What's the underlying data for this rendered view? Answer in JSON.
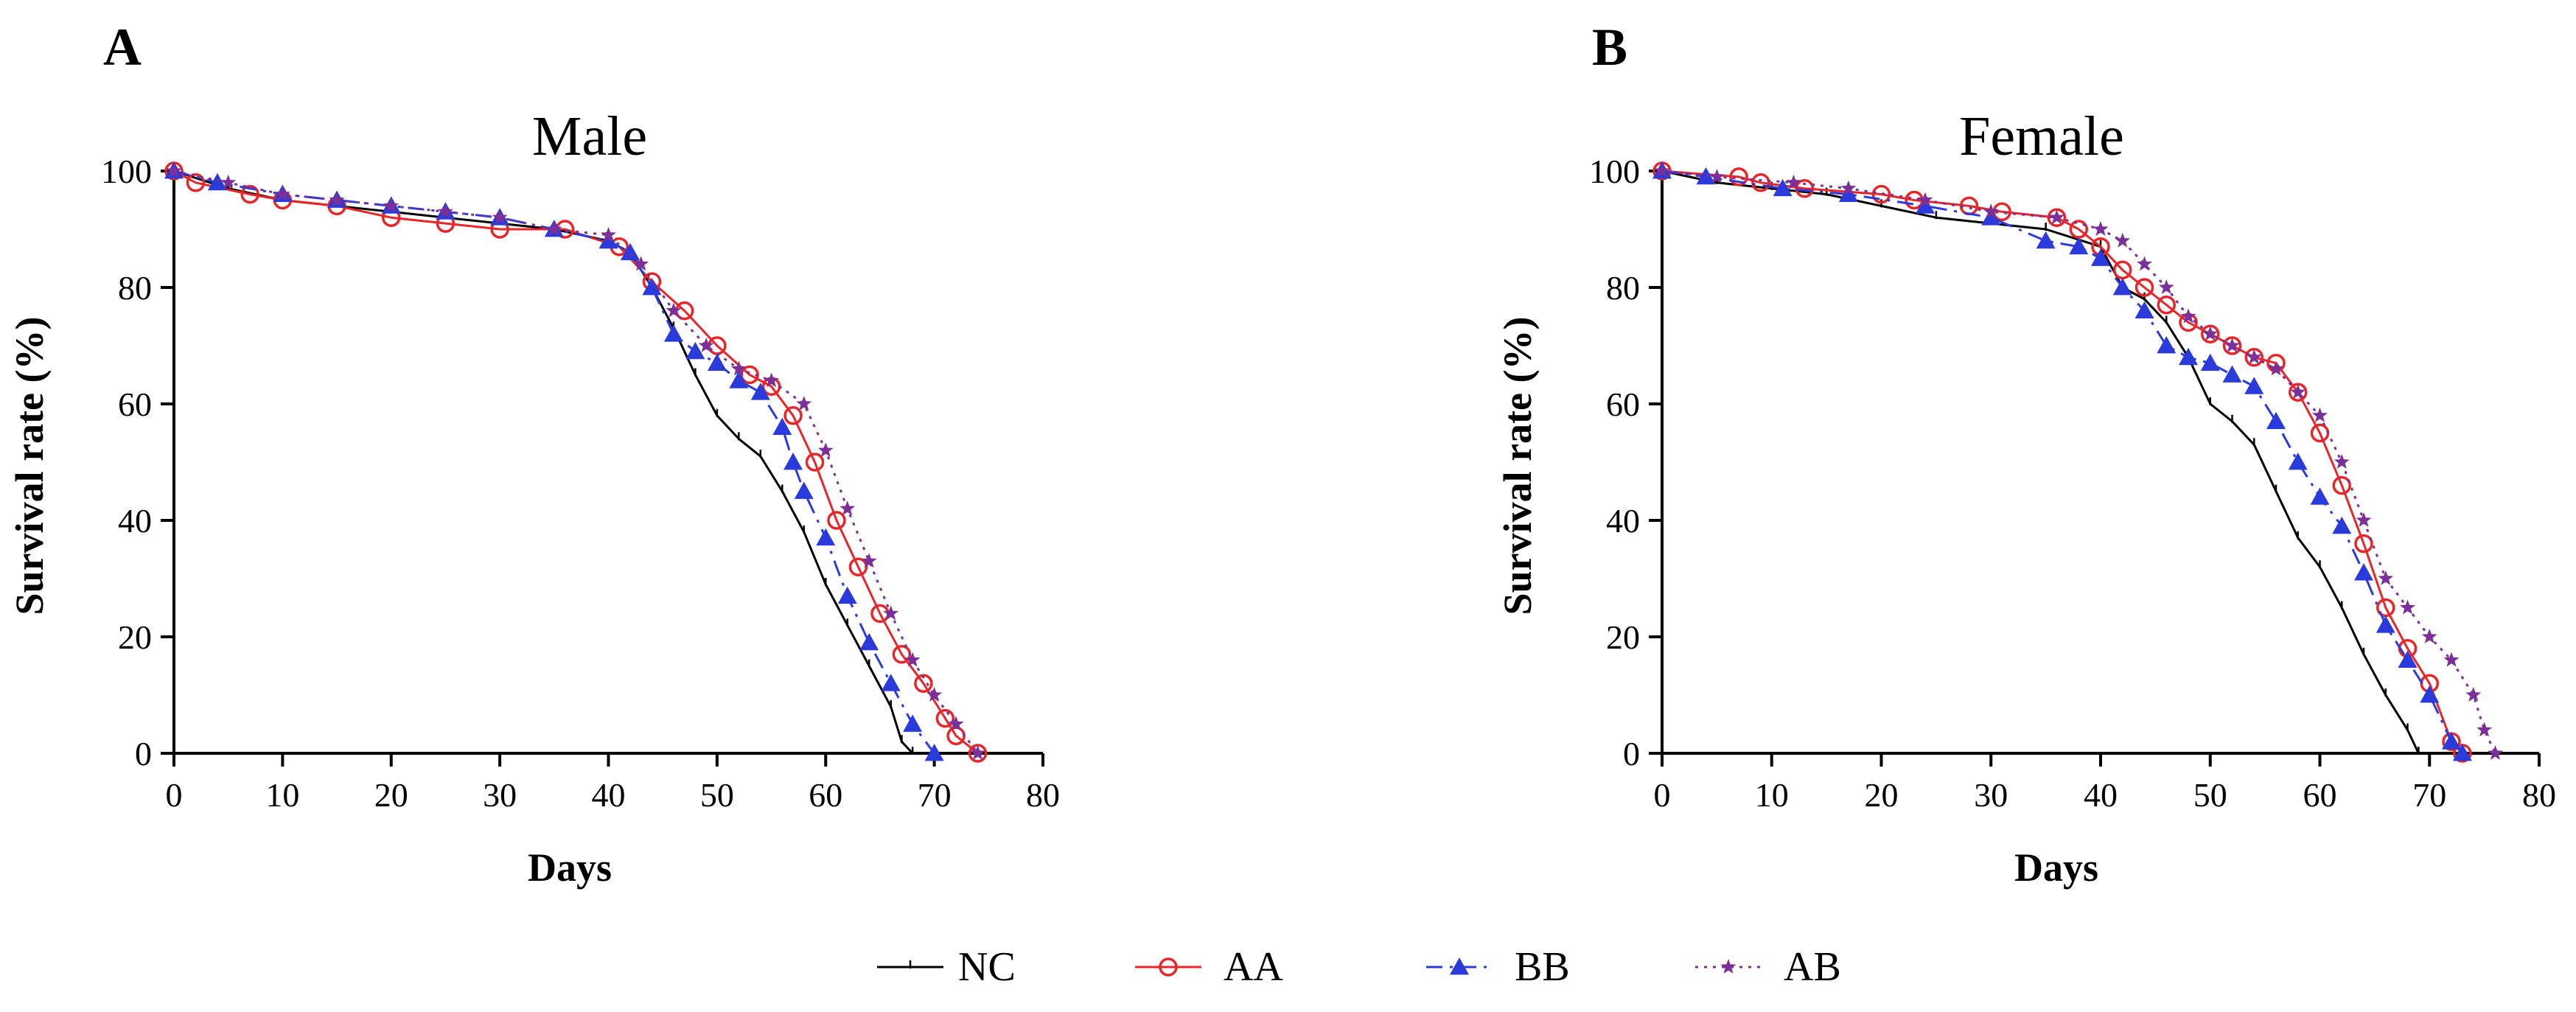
{
  "chart_data": [
    {
      "panel": "A",
      "type": "line",
      "title": "Male",
      "xlabel": "Days",
      "ylabel": "Survival rate (%)",
      "xlim": [
        0,
        80
      ],
      "ylim": [
        0,
        100
      ],
      "xticks": [
        0,
        10,
        20,
        30,
        40,
        50,
        60,
        70,
        80
      ],
      "yticks": [
        0,
        20,
        40,
        60,
        80,
        100
      ],
      "grid": false,
      "series": [
        {
          "name": "NC",
          "x": [
            0,
            5,
            10,
            15,
            20,
            25,
            30,
            35,
            40,
            42,
            44,
            46,
            48,
            50,
            52,
            54,
            56,
            58,
            60,
            62,
            64,
            66,
            67,
            68
          ],
          "y": [
            100,
            97,
            95,
            94,
            93,
            92,
            91,
            90,
            88,
            86,
            80,
            73,
            65,
            58,
            54,
            51,
            45,
            38,
            29,
            22,
            15,
            8,
            2,
            0
          ]
        },
        {
          "name": "AA",
          "x": [
            0,
            2,
            7,
            10,
            15,
            20,
            25,
            30,
            36,
            41,
            44,
            47,
            50,
            53,
            55,
            57,
            59,
            61,
            63,
            65,
            67,
            69,
            71,
            72,
            74
          ],
          "y": [
            100,
            98,
            96,
            95,
            94,
            92,
            91,
            90,
            90,
            87,
            81,
            76,
            70,
            65,
            63,
            58,
            50,
            40,
            32,
            24,
            17,
            12,
            6,
            3,
            0
          ]
        },
        {
          "name": "BB",
          "x": [
            0,
            4,
            10,
            15,
            20,
            25,
            30,
            35,
            40,
            42,
            44,
            46,
            48,
            50,
            52,
            54,
            56,
            57,
            58,
            60,
            62,
            64,
            66,
            68,
            70
          ],
          "y": [
            100,
            98,
            96,
            95,
            94,
            93,
            92,
            90,
            88,
            86,
            80,
            72,
            69,
            67,
            64,
            62,
            56,
            50,
            45,
            37,
            27,
            19,
            12,
            5,
            0
          ]
        },
        {
          "name": "AB",
          "x": [
            0,
            5,
            10,
            15,
            20,
            25,
            30,
            35,
            40,
            43,
            46,
            49,
            52,
            55,
            58,
            60,
            62,
            64,
            66,
            68,
            70,
            72,
            74
          ],
          "y": [
            100,
            98,
            96,
            95,
            94,
            93,
            92,
            90,
            89,
            84,
            76,
            70,
            66,
            64,
            60,
            52,
            42,
            33,
            24,
            16,
            10,
            5,
            0
          ]
        }
      ]
    },
    {
      "panel": "B",
      "type": "line",
      "title": "Female",
      "xlabel": "Days",
      "ylabel": "Survival rate (%)",
      "xlim": [
        0,
        80
      ],
      "ylim": [
        0,
        100
      ],
      "xticks": [
        0,
        10,
        20,
        30,
        40,
        50,
        60,
        70,
        80
      ],
      "yticks": [
        0,
        20,
        40,
        60,
        80,
        100
      ],
      "grid": false,
      "series": [
        {
          "name": "NC",
          "x": [
            0,
            5,
            10,
            15,
            20,
            25,
            30,
            35,
            40,
            42,
            44,
            46,
            48,
            50,
            52,
            54,
            56,
            58,
            60,
            62,
            64,
            66,
            68,
            69
          ],
          "y": [
            100,
            98,
            97,
            96,
            94,
            92,
            91,
            90,
            87,
            80,
            78,
            74,
            68,
            60,
            57,
            53,
            45,
            37,
            32,
            25,
            17,
            10,
            4,
            0
          ]
        },
        {
          "name": "AA",
          "x": [
            0,
            7,
            9,
            13,
            20,
            23,
            28,
            31,
            36,
            38,
            40,
            42,
            44,
            46,
            48,
            50,
            52,
            54,
            56,
            58,
            60,
            62,
            64,
            66,
            68,
            70,
            72,
            73
          ],
          "y": [
            100,
            99,
            98,
            97,
            96,
            95,
            94,
            93,
            92,
            90,
            87,
            83,
            80,
            77,
            74,
            72,
            70,
            68,
            67,
            62,
            55,
            46,
            36,
            25,
            18,
            12,
            2,
            0
          ]
        },
        {
          "name": "BB",
          "x": [
            0,
            4,
            11,
            17,
            24,
            30,
            35,
            38,
            40,
            42,
            44,
            46,
            48,
            50,
            52,
            54,
            56,
            58,
            60,
            62,
            64,
            66,
            68,
            70,
            72,
            73
          ],
          "y": [
            100,
            99,
            97,
            96,
            94,
            92,
            88,
            87,
            85,
            80,
            76,
            70,
            68,
            67,
            65,
            63,
            57,
            50,
            44,
            39,
            31,
            22,
            16,
            10,
            2,
            0
          ]
        },
        {
          "name": "AB",
          "x": [
            0,
            5,
            12,
            17,
            24,
            30,
            36,
            40,
            42,
            44,
            46,
            48,
            50,
            52,
            54,
            56,
            58,
            60,
            62,
            64,
            66,
            68,
            70,
            72,
            74,
            75,
            76
          ],
          "y": [
            100,
            99,
            98,
            97,
            95,
            93,
            92,
            90,
            88,
            84,
            80,
            75,
            72,
            70,
            68,
            66,
            62,
            58,
            50,
            40,
            30,
            25,
            20,
            16,
            10,
            4,
            0
          ]
        }
      ]
    }
  ],
  "legend": {
    "entries": [
      {
        "name": "NC",
        "color": "#000000",
        "marker": "tick",
        "dash": "solid"
      },
      {
        "name": "AA",
        "color": "#e8262a",
        "marker": "open-circle",
        "dash": "solid"
      },
      {
        "name": "BB",
        "color": "#2b3bdb",
        "marker": "filled-triangle",
        "dash": "dashdot"
      },
      {
        "name": "AB",
        "color": "#7b2f98",
        "marker": "star",
        "dash": "dotted"
      }
    ]
  }
}
